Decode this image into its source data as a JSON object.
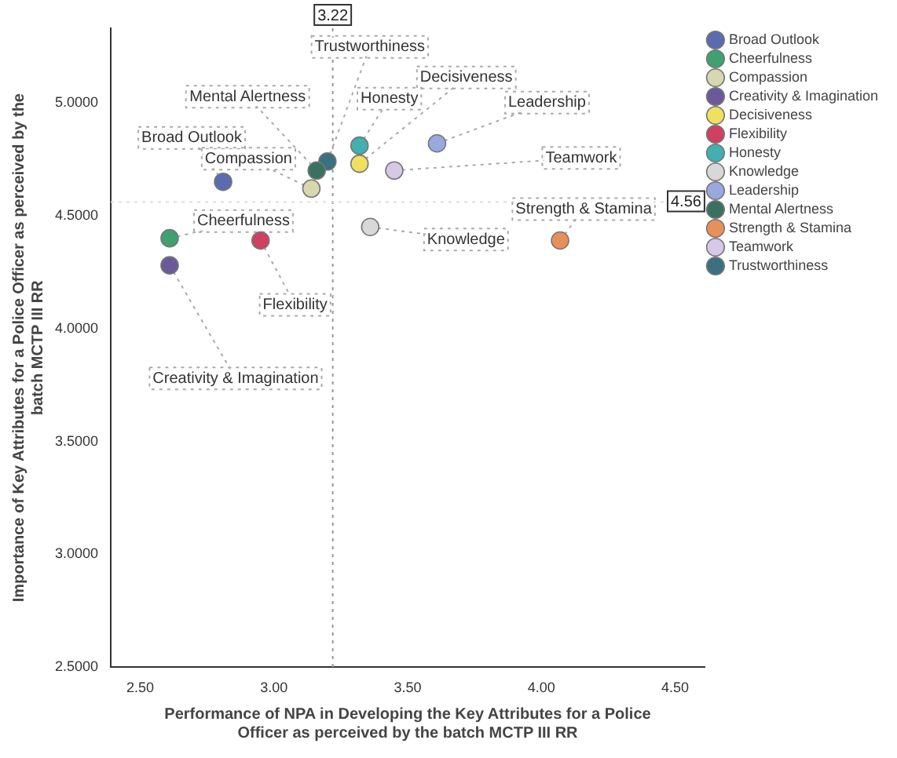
{
  "chart_data": {
    "type": "scatter",
    "xlabel": "Performance of NPA in Developing the Key Attributes for a Police Officer as perceived by the batch MCTP III RR",
    "ylabel": "Importance of Key Attributes for a Police Officer as perceived by the batch MCTP III RR",
    "xlim": [
      2.39,
      4.61
    ],
    "xticks": [
      {
        "value": 2.5,
        "label": "2.50"
      },
      {
        "value": 3,
        "label": "3.00"
      },
      {
        "value": 3.5,
        "label": "3.50"
      },
      {
        "value": 4,
        "label": "4.00"
      },
      {
        "value": 4.5,
        "label": "4.50"
      }
    ],
    "ylim": [
      2.5,
      5.33
    ],
    "yticks": [
      {
        "value": 2.5,
        "label": "2.5000"
      },
      {
        "value": 3,
        "label": "3.0000"
      },
      {
        "value": 3.5,
        "label": "3.5000"
      },
      {
        "value": 4,
        "label": "4.0000"
      },
      {
        "value": 4.5,
        "label": "4.5000"
      },
      {
        "value": 5,
        "label": "5.0000"
      }
    ],
    "grid": false,
    "legend": "right",
    "marker": "circle",
    "ref_lines": [
      {
        "axis": "x",
        "value": 3.22,
        "label": "3.22",
        "line_style": "dotted",
        "color": "#999999"
      },
      {
        "axis": "y",
        "value": 4.56,
        "label": "4.56",
        "line_style": "dotted",
        "color": "#dddddd"
      }
    ],
    "series": [
      {
        "name": "Broad Outlook",
        "color": "#5a6bb0",
        "x": [
          2.81
        ],
        "values": [
          4.65
        ]
      },
      {
        "name": "Cheerfulness",
        "color": "#3fa070",
        "x": [
          2.61
        ],
        "values": [
          4.4
        ]
      },
      {
        "name": "Compassion",
        "color": "#d8d8b0",
        "x": [
          3.14
        ],
        "values": [
          4.62
        ]
      },
      {
        "name": "Creativity & Imagination",
        "color": "#6a5a9a",
        "x": [
          2.61
        ],
        "values": [
          4.28
        ]
      },
      {
        "name": "Decisiveness",
        "color": "#f0e060",
        "x": [
          3.32
        ],
        "values": [
          4.73
        ]
      },
      {
        "name": "Flexibility",
        "color": "#d04060",
        "x": [
          2.95
        ],
        "values": [
          4.39
        ]
      },
      {
        "name": "Honesty",
        "color": "#40b0b0",
        "x": [
          3.32
        ],
        "values": [
          4.81
        ]
      },
      {
        "name": "Knowledge",
        "color": "#d8d8d8",
        "x": [
          3.36
        ],
        "values": [
          4.45
        ]
      },
      {
        "name": "Leadership",
        "color": "#9aa8e0",
        "x": [
          3.61
        ],
        "values": [
          4.82
        ]
      },
      {
        "name": "Mental Alertness",
        "color": "#3a7060",
        "x": [
          3.16
        ],
        "values": [
          4.7
        ]
      },
      {
        "name": "Strength & Stamina",
        "color": "#e8905a",
        "x": [
          4.07
        ],
        "values": [
          4.39
        ]
      },
      {
        "name": "Teamwork",
        "color": "#d8c8e8",
        "x": [
          3.45
        ],
        "values": [
          4.7
        ]
      },
      {
        "name": "Trustworthiness",
        "color": "#3a7080",
        "x": [
          3.2
        ],
        "values": [
          4.74
        ]
      }
    ]
  }
}
